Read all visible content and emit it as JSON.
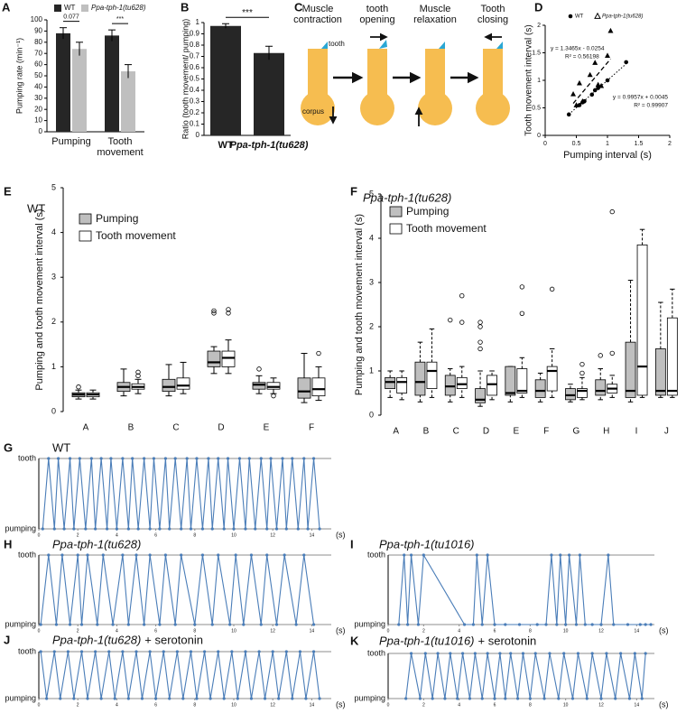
{
  "chart_data": [
    {
      "panel": "A",
      "type": "bar",
      "ylabel": "Pumping rate (min⁻¹)",
      "categories": [
        "Pumping",
        "Tooth movement"
      ],
      "series": [
        {
          "name": "WT",
          "color": "#262626",
          "values": [
            88,
            86
          ],
          "errors": [
            5,
            5
          ]
        },
        {
          "name": "Ppa-tph-1(tu628)",
          "color": "#bfbfbf",
          "values": [
            74,
            54
          ],
          "errors": [
            6,
            6
          ]
        }
      ],
      "ylim": [
        0,
        100
      ],
      "yticks": [
        0,
        10,
        20,
        30,
        40,
        50,
        60,
        70,
        80,
        90,
        100
      ],
      "annotations": [
        "0.077",
        "***"
      ]
    },
    {
      "panel": "B",
      "type": "bar",
      "ylabel": "Ratio (tooth movement/ pumping)",
      "categories": [
        "WT",
        "Ppa-tph-1(tu628)"
      ],
      "values": [
        0.97,
        0.73
      ],
      "errors": [
        0.02,
        0.06
      ],
      "color": "#262626",
      "ylim": [
        0,
        1
      ],
      "yticks": [
        0,
        0.1,
        0.2,
        0.3,
        0.4,
        0.5,
        0.6,
        0.7,
        0.8,
        0.9,
        1
      ],
      "annotations": [
        "***"
      ]
    },
    {
      "panel": "D",
      "type": "scatter",
      "xlabel": "Pumping interval (s)",
      "ylabel": "Tooth movement interval (s)",
      "xlim": [
        0,
        2
      ],
      "xticks": [
        0,
        0.5,
        1,
        1.5,
        2
      ],
      "ylim": [
        0,
        2
      ],
      "yticks": [
        0,
        0.5,
        1,
        1.5,
        2
      ],
      "series": [
        {
          "name": "WT",
          "marker": "circle",
          "color": "#000000",
          "x": [
            0.38,
            0.55,
            0.6,
            0.63,
            0.75,
            0.8,
            0.85,
            1.0,
            1.3
          ],
          "values": [
            0.38,
            0.55,
            0.6,
            0.62,
            0.74,
            0.82,
            0.86,
            1.0,
            1.33
          ],
          "trendline": {
            "slope": 0.9957,
            "intercept": 0.0045,
            "equation": "y = 0.9957x + 0.0045",
            "r2": "R² = 0.99907",
            "style": "dotted"
          }
        },
        {
          "name": "Ppa-tph-1(tu628)",
          "marker": "triangle",
          "color": "#000000",
          "x": [
            0.45,
            0.5,
            0.55,
            0.6,
            0.72,
            0.8,
            0.85,
            0.9,
            1.0,
            1.05
          ],
          "values": [
            0.75,
            0.55,
            0.95,
            0.62,
            1.1,
            1.32,
            0.92,
            0.9,
            1.45,
            1.9
          ],
          "trendline": {
            "slope": 1.3465,
            "intercept": -0.0254,
            "equation": "y = 1.3465x - 0.0254",
            "r2": "R² = 0.56198",
            "style": "dashed"
          }
        }
      ]
    },
    {
      "panel": "E",
      "type": "box",
      "title": "WT",
      "ylabel": "Pumping and tooth movement interval (s)",
      "categories": [
        "A",
        "B",
        "C",
        "D",
        "E",
        "F"
      ],
      "ylim": [
        0,
        5
      ],
      "yticks": [
        0,
        1,
        2,
        3,
        4,
        5
      ],
      "whisker_style": "solid",
      "series": [
        {
          "name": "Pumping",
          "color": "#bfbfbf",
          "boxes": [
            {
              "min": 0.28,
              "q1": 0.33,
              "median": 0.38,
              "q3": 0.42,
              "max": 0.48,
              "outliers": [
                0.55
              ]
            },
            {
              "min": 0.35,
              "q1": 0.45,
              "median": 0.55,
              "q3": 0.65,
              "max": 0.95,
              "outliers": []
            },
            {
              "min": 0.35,
              "q1": 0.45,
              "median": 0.55,
              "q3": 0.72,
              "max": 1.05,
              "outliers": []
            },
            {
              "min": 0.85,
              "q1": 1.0,
              "median": 1.1,
              "q3": 1.35,
              "max": 1.45,
              "outliers": [
                2.2,
                2.25
              ]
            },
            {
              "min": 0.4,
              "q1": 0.5,
              "median": 0.6,
              "q3": 0.65,
              "max": 0.8,
              "outliers": [
                0.95
              ]
            },
            {
              "min": 0.2,
              "q1": 0.3,
              "median": 0.45,
              "q3": 0.75,
              "max": 1.3,
              "outliers": []
            }
          ]
        },
        {
          "name": "Tooth movement",
          "color": "#ffffff",
          "boxes": [
            {
              "min": 0.28,
              "q1": 0.33,
              "median": 0.38,
              "q3": 0.42,
              "max": 0.48,
              "outliers": []
            },
            {
              "min": 0.4,
              "q1": 0.5,
              "median": 0.55,
              "q3": 0.62,
              "max": 0.72,
              "outliers": [
                0.8,
                0.88
              ]
            },
            {
              "min": 0.4,
              "q1": 0.5,
              "median": 0.58,
              "q3": 0.75,
              "max": 1.1,
              "outliers": []
            },
            {
              "min": 0.85,
              "q1": 1.0,
              "median": 1.2,
              "q3": 1.35,
              "max": 1.6,
              "outliers": [
                2.2,
                2.28
              ]
            },
            {
              "min": 0.4,
              "q1": 0.5,
              "median": 0.55,
              "q3": 0.65,
              "max": 0.75,
              "outliers": [
                0.35
              ]
            },
            {
              "min": 0.25,
              "q1": 0.35,
              "median": 0.5,
              "q3": 0.75,
              "max": 1.0,
              "outliers": [
                1.3
              ]
            }
          ]
        }
      ]
    },
    {
      "panel": "F",
      "type": "box",
      "title": "Ppa-tph-1(tu628)",
      "ylabel": "Pumping and tooth movement interval (s)",
      "categories": [
        "A",
        "B",
        "C",
        "D",
        "E",
        "F",
        "G",
        "H",
        "I",
        "J"
      ],
      "ylim": [
        0,
        5
      ],
      "yticks": [
        0,
        1,
        2,
        3,
        4,
        5
      ],
      "whisker_style": "dashed",
      "series": [
        {
          "name": "Pumping",
          "color": "#bfbfbf",
          "boxes": [
            {
              "min": 0.4,
              "q1": 0.6,
              "median": 0.75,
              "q3": 0.85,
              "max": 1.0,
              "outliers": []
            },
            {
              "min": 0.3,
              "q1": 0.45,
              "median": 0.75,
              "q3": 1.2,
              "max": 1.65,
              "outliers": []
            },
            {
              "min": 0.3,
              "q1": 0.45,
              "median": 0.65,
              "q3": 0.9,
              "max": 1.05,
              "outliers": [
                2.15
              ]
            },
            {
              "min": 0.2,
              "q1": 0.28,
              "median": 0.35,
              "q3": 0.6,
              "max": 1.0,
              "outliers": [
                1.5,
                1.65,
                2.0,
                2.1
              ]
            },
            {
              "min": 0.3,
              "q1": 0.45,
              "median": 0.5,
              "q3": 1.1,
              "max": 1.1,
              "outliers": []
            },
            {
              "min": 0.3,
              "q1": 0.4,
              "median": 0.55,
              "q3": 0.8,
              "max": 0.95,
              "outliers": []
            },
            {
              "min": 0.3,
              "q1": 0.35,
              "median": 0.45,
              "q3": 0.6,
              "max": 0.7,
              "outliers": []
            },
            {
              "min": 0.35,
              "q1": 0.45,
              "median": 0.55,
              "q3": 0.8,
              "max": 1.05,
              "outliers": [
                1.35
              ]
            },
            {
              "min": 0.3,
              "q1": 0.4,
              "median": 0.55,
              "q3": 1.65,
              "max": 3.05,
              "outliers": []
            },
            {
              "min": 0.4,
              "q1": 0.45,
              "median": 0.55,
              "q3": 1.5,
              "max": 2.55,
              "outliers": []
            }
          ]
        },
        {
          "name": "Tooth movement",
          "color": "#ffffff",
          "boxes": [
            {
              "min": 0.35,
              "q1": 0.5,
              "median": 0.75,
              "q3": 0.85,
              "max": 1.0,
              "outliers": []
            },
            {
              "min": 0.4,
              "q1": 0.6,
              "median": 1.0,
              "q3": 1.2,
              "max": 1.95,
              "outliers": []
            },
            {
              "min": 0.4,
              "q1": 0.6,
              "median": 0.7,
              "q3": 0.85,
              "max": 1.1,
              "outliers": [
                2.1,
                2.7
              ]
            },
            {
              "min": 0.35,
              "q1": 0.45,
              "median": 0.7,
              "q3": 0.9,
              "max": 1.0,
              "outliers": []
            },
            {
              "min": 0.4,
              "q1": 0.5,
              "median": 0.55,
              "q3": 1.05,
              "max": 1.3,
              "outliers": [
                2.3,
                2.9
              ]
            },
            {
              "min": 0.4,
              "q1": 0.55,
              "median": 1.0,
              "q3": 1.1,
              "max": 1.5,
              "outliers": [
                2.85
              ]
            },
            {
              "min": 0.35,
              "q1": 0.4,
              "median": 0.55,
              "q3": 0.6,
              "max": 0.85,
              "outliers": [
                0.95,
                1.15
              ]
            },
            {
              "min": 0.4,
              "q1": 0.5,
              "median": 0.6,
              "q3": 0.7,
              "max": 0.9,
              "outliers": [
                1.4,
                4.6
              ]
            },
            {
              "min": 0.4,
              "q1": 0.45,
              "median": 1.1,
              "q3": 3.85,
              "max": 4.2,
              "outliers": []
            },
            {
              "min": 0.4,
              "q1": 0.45,
              "median": 0.55,
              "q3": 2.2,
              "max": 2.85,
              "outliers": []
            }
          ]
        }
      ]
    },
    {
      "panel": "G",
      "type": "line",
      "title": "WT",
      "xlabel": "(s)",
      "color": "#4a7db8",
      "xlim": [
        0,
        15
      ],
      "xticks": [
        0,
        2,
        4,
        6,
        8,
        10,
        12,
        14
      ],
      "ylim": [
        0,
        1
      ],
      "yticks": [
        {
          "value": 1,
          "label": "tooth"
        },
        {
          "value": 0,
          "label": "pumping"
        }
      ],
      "x": [
        0.2,
        0.5,
        0.8,
        1.0,
        1.3,
        1.6,
        1.8,
        2.1,
        2.4,
        2.7,
        2.9,
        3.2,
        3.5,
        3.7,
        4.0,
        4.3,
        4.6,
        4.8,
        5.1,
        5.4,
        5.7,
        5.9,
        6.2,
        6.5,
        6.7,
        7.0,
        7.3,
        7.6,
        7.8,
        8.1,
        8.4,
        8.7,
        8.9,
        9.2,
        9.5,
        9.7,
        10.0,
        10.3,
        10.6,
        10.8,
        11.1,
        11.4,
        11.7,
        11.9,
        12.2,
        12.5,
        12.7,
        13.0,
        13.3,
        13.6,
        13.8,
        14.1,
        14.4
      ],
      "values": [
        0,
        1,
        0,
        1,
        0,
        1,
        0,
        1,
        0,
        1,
        0,
        1,
        0,
        1,
        0,
        1,
        0,
        1,
        0,
        1,
        0,
        1,
        0,
        1,
        0,
        1,
        0,
        1,
        0,
        1,
        0,
        1,
        0,
        1,
        0,
        1,
        0,
        1,
        0,
        1,
        0,
        1,
        0,
        1,
        0,
        1,
        0,
        1,
        0,
        1,
        0,
        1,
        0
      ]
    },
    {
      "panel": "H",
      "type": "line",
      "title": "Ppa-tph-1(tu628)",
      "xlabel": "(s)",
      "color": "#4a7db8",
      "xlim": [
        0,
        15
      ],
      "xticks": [
        0,
        2,
        4,
        6,
        8,
        10,
        12,
        14
      ],
      "ylim": [
        0,
        1
      ],
      "yticks": [
        {
          "value": 1,
          "label": "tooth"
        },
        {
          "value": 0,
          "label": "pumping"
        }
      ],
      "x": [
        0.1,
        0.5,
        0.9,
        1.2,
        1.6,
        2.0,
        2.2,
        2.5,
        3.0,
        3.3,
        3.8,
        4.3,
        4.6,
        5.0,
        5.4,
        5.7,
        6.2,
        6.5,
        7.0,
        7.3,
        8.0,
        8.4,
        8.9,
        9.2,
        9.8,
        10.1,
        10.5,
        10.9,
        11.4,
        11.7,
        12.2,
        12.6,
        13.2,
        13.6,
        14.1
      ],
      "values": [
        0,
        1,
        0,
        1,
        0,
        1,
        0,
        1,
        0,
        1,
        0,
        1,
        0,
        1,
        0,
        1,
        0,
        1,
        0,
        1,
        0,
        1,
        0,
        1,
        0,
        1,
        0,
        1,
        0,
        1,
        0,
        1,
        0,
        1,
        0
      ]
    },
    {
      "panel": "I",
      "type": "line",
      "title": "Ppa-tph-1(tu1016)",
      "xlabel": "(s)",
      "color": "#4a7db8",
      "xlim": [
        0,
        15
      ],
      "xticks": [
        0,
        2,
        4,
        6,
        8,
        10,
        12,
        14
      ],
      "ylim": [
        0,
        1
      ],
      "yticks": [
        {
          "value": 1,
          "label": "tooth"
        },
        {
          "value": 0,
          "label": "pumping"
        }
      ],
      "x": [
        0.6,
        0.9,
        1.1,
        1.3,
        1.7,
        2.0,
        4.3,
        4.8,
        5.0,
        5.3,
        5.6,
        6.0,
        6.6,
        7.4,
        8.4,
        8.9,
        9.2,
        9.5,
        9.7,
        10.0,
        10.2,
        10.6,
        10.8,
        11.1,
        11.5,
        12.0,
        12.4,
        12.7,
        13.5,
        14.2,
        14.5,
        14.8
      ],
      "values": [
        0,
        1,
        0,
        1,
        0,
        1,
        0,
        0,
        1,
        0,
        1,
        0,
        0,
        0,
        0,
        0,
        1,
        0,
        1,
        0,
        1,
        0,
        1,
        0,
        0,
        0,
        1,
        0,
        0,
        0,
        0,
        0
      ]
    },
    {
      "panel": "J",
      "type": "line",
      "title": "Ppa-tph-1(tu628)",
      "treatment": "+ serotonin",
      "xlabel": "(s)",
      "color": "#4a7db8",
      "xlim": [
        0,
        15
      ],
      "xticks": [
        0,
        2,
        4,
        6,
        8,
        10,
        12,
        14
      ],
      "ylim": [
        0,
        1
      ],
      "yticks": [
        {
          "value": 1,
          "label": "tooth"
        },
        {
          "value": 0,
          "label": "pumping"
        }
      ],
      "x": [
        0.1,
        0.4,
        0.8,
        1.1,
        1.5,
        1.8,
        2.2,
        2.5,
        2.9,
        3.2,
        3.6,
        3.9,
        4.3,
        4.6,
        5.0,
        5.3,
        5.7,
        6.0,
        6.4,
        6.7,
        7.1,
        7.4,
        7.8,
        8.1,
        8.5,
        8.8,
        9.2,
        9.5,
        9.9,
        10.2,
        10.6,
        10.9,
        11.3,
        11.6,
        12.0,
        12.3,
        12.7,
        13.0,
        13.4,
        13.7,
        14.1,
        14.4
      ],
      "values": [
        1,
        0,
        1,
        0,
        1,
        0,
        1,
        0,
        1,
        0,
        1,
        0,
        1,
        0,
        1,
        0,
        1,
        0,
        1,
        0,
        1,
        0,
        1,
        0,
        1,
        0,
        1,
        0,
        1,
        0,
        1,
        0,
        1,
        0,
        1,
        0,
        1,
        0,
        1,
        0,
        1,
        0
      ]
    },
    {
      "panel": "K",
      "type": "line",
      "title": "Ppa-tph-1(tu1016)",
      "treatment": "+ serotonin",
      "xlabel": "(s)",
      "color": "#4a7db8",
      "xlim": [
        0,
        15
      ],
      "xticks": [
        0,
        2,
        4,
        6,
        8,
        10,
        12,
        14
      ],
      "ylim": [
        0,
        1
      ],
      "yticks": [
        {
          "value": 1,
          "label": "tooth"
        },
        {
          "value": 0,
          "label": "pumping"
        }
      ],
      "x": [
        1.0,
        1.3,
        1.8,
        2.1,
        2.5,
        2.8,
        3.2,
        3.5,
        3.9,
        4.2,
        4.6,
        4.9,
        5.3,
        5.6,
        6.0,
        6.3,
        6.6,
        6.9,
        7.3,
        7.6,
        8.0,
        8.3,
        8.8,
        9.1,
        9.6,
        9.9,
        10.4,
        10.7,
        11.2,
        11.5,
        12.0,
        12.3,
        12.8,
        13.1,
        13.6,
        13.9,
        14.3,
        14.5
      ],
      "values": [
        0,
        1,
        0,
        1,
        0,
        1,
        0,
        1,
        0,
        1,
        0,
        1,
        0,
        1,
        0,
        1,
        0,
        1,
        0,
        1,
        0,
        1,
        0,
        1,
        0,
        1,
        0,
        1,
        0,
        1,
        0,
        1,
        0,
        1,
        0,
        1,
        0,
        1
      ]
    }
  ],
  "diagram": {
    "panel": "C",
    "steps": [
      "Muscle contraction",
      "tooth opening",
      "Muscle relaxation",
      "Tooth closing"
    ],
    "tooth_label": "tooth",
    "corpus_label": "corpus"
  }
}
